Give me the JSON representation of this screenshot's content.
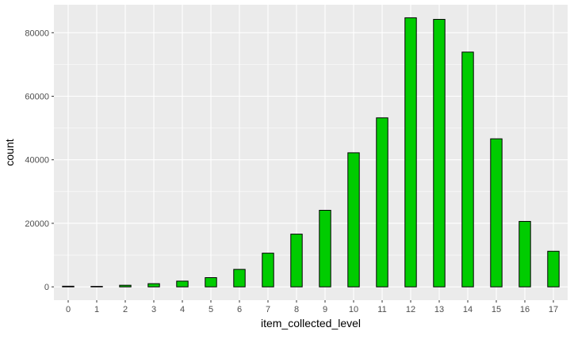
{
  "chart_data": {
    "type": "bar",
    "xlabel": "item_collected_level",
    "ylabel": "count",
    "categories": [
      "0",
      "1",
      "2",
      "3",
      "4",
      "5",
      "6",
      "7",
      "8",
      "9",
      "10",
      "11",
      "12",
      "13",
      "14",
      "15",
      "16",
      "17"
    ],
    "values": [
      200,
      150,
      500,
      1000,
      1800,
      2900,
      5500,
      10600,
      16600,
      24100,
      42200,
      53200,
      84700,
      84200,
      73900,
      46600,
      20600,
      11200
    ],
    "ylim": [
      -4200,
      88800
    ],
    "yticks": [
      0,
      20000,
      40000,
      60000,
      80000
    ],
    "ytick_labels": [
      "0",
      "20000",
      "40000",
      "60000",
      "80000"
    ],
    "grid": true,
    "colors": {
      "panel_background": "#ebebeb",
      "grid_major": "#ffffff",
      "bar_fill": "#00cc00",
      "bar_stroke": "#000000"
    }
  }
}
